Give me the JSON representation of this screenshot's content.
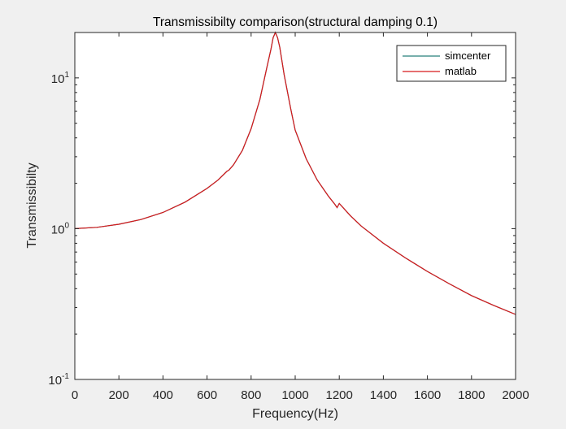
{
  "chart_data": {
    "type": "line",
    "title": "Transmissibilty comparison(structural damping 0.1)",
    "xlabel": "Frequency(Hz)",
    "ylabel": "Transmissibilty",
    "xlim": [
      0,
      2000
    ],
    "ylim": [
      0.1,
      20
    ],
    "yscale": "log",
    "grid": false,
    "legend_position": "top-right",
    "x_ticks": [
      0,
      200,
      400,
      600,
      800,
      1000,
      1200,
      1400,
      1600,
      1800,
      2000
    ],
    "y_ticks": [
      {
        "base": "10",
        "exp": "-1",
        "value": 0.1
      },
      {
        "base": "10",
        "exp": "0",
        "value": 1
      },
      {
        "base": "10",
        "exp": "1",
        "value": 10
      }
    ],
    "x": [
      0,
      100,
      200,
      300,
      400,
      500,
      600,
      650,
      690,
      700,
      720,
      760,
      800,
      840,
      870,
      890,
      900,
      910,
      920,
      930,
      950,
      980,
      1000,
      1050,
      1100,
      1150,
      1180,
      1190,
      1200,
      1250,
      1300,
      1400,
      1500,
      1600,
      1700,
      1800,
      1900,
      2000
    ],
    "series": [
      {
        "name": "simcenter",
        "color": "#267f7a",
        "y": [
          1.0,
          1.02,
          1.07,
          1.15,
          1.28,
          1.5,
          1.85,
          2.1,
          2.4,
          2.45,
          2.65,
          3.3,
          4.6,
          7.2,
          11.5,
          15.5,
          18.5,
          20.0,
          18.5,
          16.0,
          10.5,
          6.2,
          4.5,
          2.9,
          2.1,
          1.65,
          1.45,
          1.38,
          1.47,
          1.22,
          1.04,
          0.8,
          0.64,
          0.52,
          0.43,
          0.36,
          0.31,
          0.27
        ]
      },
      {
        "name": "matlab",
        "color": "#d7191c",
        "y": [
          1.0,
          1.02,
          1.07,
          1.15,
          1.28,
          1.5,
          1.85,
          2.1,
          2.4,
          2.45,
          2.65,
          3.3,
          4.6,
          7.2,
          11.5,
          15.5,
          18.5,
          20.0,
          18.5,
          16.0,
          10.5,
          6.2,
          4.5,
          2.9,
          2.1,
          1.65,
          1.45,
          1.38,
          1.47,
          1.22,
          1.04,
          0.8,
          0.64,
          0.52,
          0.43,
          0.36,
          0.31,
          0.27
        ]
      }
    ]
  }
}
